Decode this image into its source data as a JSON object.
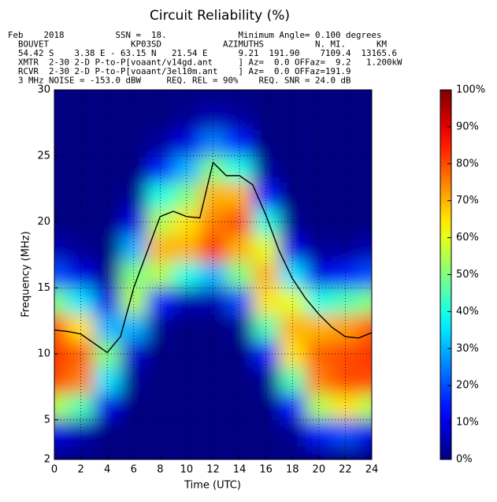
{
  "chart_data": {
    "type": "heatmap",
    "title": "Circuit Reliability (%)",
    "header": [
      "Feb    2018          SSN =  18.              Minimum Angle= 0.100 degrees",
      "  BOUVET                KP03SD            AZIMUTHS          N. MI.      KM",
      "  54.42 S    3.38 E - 63.15 N   21.54 E      9.21  191.90    7109.4  13165.6",
      "  XMTR  2-30 2-D P-to-P[voaant/v14gd.ant     ] Az=  0.0 OFFaz=  9.2   1.200kW",
      "  RCVR  2-30 2-D P-to-P[voaant/3el10m.ant    ] Az=  0.0 OFFaz=191.9",
      "  3 MHz NOISE = -153.0 dBW     REQ. REL = 90%    REQ. SNR = 24.0 dB"
    ],
    "xlabel": "Time (UTC)",
    "ylabel": "Frequency (MHz)",
    "xlim": [
      0,
      24
    ],
    "ylim": [
      2,
      30
    ],
    "xticks": [
      0,
      2,
      4,
      6,
      8,
      10,
      12,
      14,
      16,
      18,
      20,
      22,
      24
    ],
    "yticks": [
      2,
      5,
      10,
      15,
      20,
      25,
      30
    ],
    "grid": true,
    "colormap": "jet",
    "clim": [
      0,
      100
    ],
    "cticks": [
      {
        "value": 0,
        "label": "0%"
      },
      {
        "value": 10,
        "label": "10%"
      },
      {
        "value": 20,
        "label": "20%"
      },
      {
        "value": 30,
        "label": "30%"
      },
      {
        "value": 40,
        "label": "40%"
      },
      {
        "value": 50,
        "label": "50%"
      },
      {
        "value": 60,
        "label": "60%"
      },
      {
        "value": 70,
        "label": "70%"
      },
      {
        "value": 80,
        "label": "80%"
      },
      {
        "value": 90,
        "label": "90%"
      },
      {
        "value": 100,
        "label": "100%"
      }
    ],
    "x": [
      0,
      2,
      4,
      6,
      8,
      10,
      12,
      14,
      16,
      18,
      20,
      22,
      24
    ],
    "y": [
      2,
      4,
      6,
      8,
      10,
      12,
      14,
      16,
      18,
      20,
      22,
      24,
      26,
      28,
      30
    ],
    "z": [
      [
        0,
        0,
        0,
        0,
        0,
        0,
        0,
        0,
        0,
        0,
        0,
        0,
        0
      ],
      [
        10,
        5,
        0,
        0,
        0,
        0,
        0,
        0,
        0,
        2,
        15,
        20,
        10
      ],
      [
        55,
        45,
        10,
        0,
        0,
        0,
        0,
        0,
        0,
        15,
        55,
        65,
        55
      ],
      [
        80,
        75,
        35,
        2,
        0,
        0,
        0,
        0,
        2,
        45,
        75,
        80,
        80
      ],
      [
        82,
        78,
        50,
        8,
        0,
        0,
        0,
        0,
        15,
        65,
        78,
        80,
        82
      ],
      [
        78,
        65,
        30,
        30,
        2,
        0,
        0,
        2,
        45,
        70,
        70,
        72,
        78
      ],
      [
        50,
        35,
        10,
        55,
        15,
        5,
        5,
        20,
        65,
        60,
        40,
        45,
        50
      ],
      [
        20,
        10,
        2,
        50,
        55,
        40,
        30,
        50,
        70,
        35,
        10,
        15,
        20
      ],
      [
        5,
        2,
        0,
        30,
        70,
        70,
        82,
        70,
        60,
        10,
        2,
        2,
        5
      ],
      [
        0,
        0,
        0,
        10,
        55,
        65,
        75,
        80,
        40,
        2,
        0,
        0,
        0
      ],
      [
        0,
        0,
        0,
        2,
        40,
        50,
        70,
        70,
        15,
        0,
        0,
        0,
        0
      ],
      [
        0,
        0,
        0,
        0,
        15,
        30,
        50,
        40,
        3,
        0,
        0,
        0,
        0
      ],
      [
        0,
        0,
        0,
        0,
        3,
        10,
        25,
        15,
        0,
        0,
        0,
        0,
        0
      ],
      [
        0,
        0,
        0,
        0,
        0,
        2,
        5,
        3,
        0,
        0,
        0,
        0,
        0
      ],
      [
        0,
        0,
        0,
        0,
        0,
        0,
        0,
        0,
        0,
        0,
        0,
        0,
        0
      ]
    ],
    "line": {
      "color": "#000000",
      "x": [
        0,
        1,
        2,
        3,
        4,
        5,
        6,
        7,
        8,
        9,
        10,
        11,
        12,
        13,
        14,
        15,
        16,
        17,
        18,
        19,
        20,
        21,
        22,
        23,
        24
      ],
      "values": [
        11.8,
        11.7,
        11.5,
        10.8,
        10.1,
        11.3,
        15.0,
        17.7,
        20.4,
        20.8,
        20.4,
        20.3,
        24.5,
        23.5,
        23.5,
        22.8,
        20.5,
        17.8,
        15.7,
        14.2,
        13.0,
        12.0,
        11.3,
        11.2,
        11.6
      ]
    }
  }
}
